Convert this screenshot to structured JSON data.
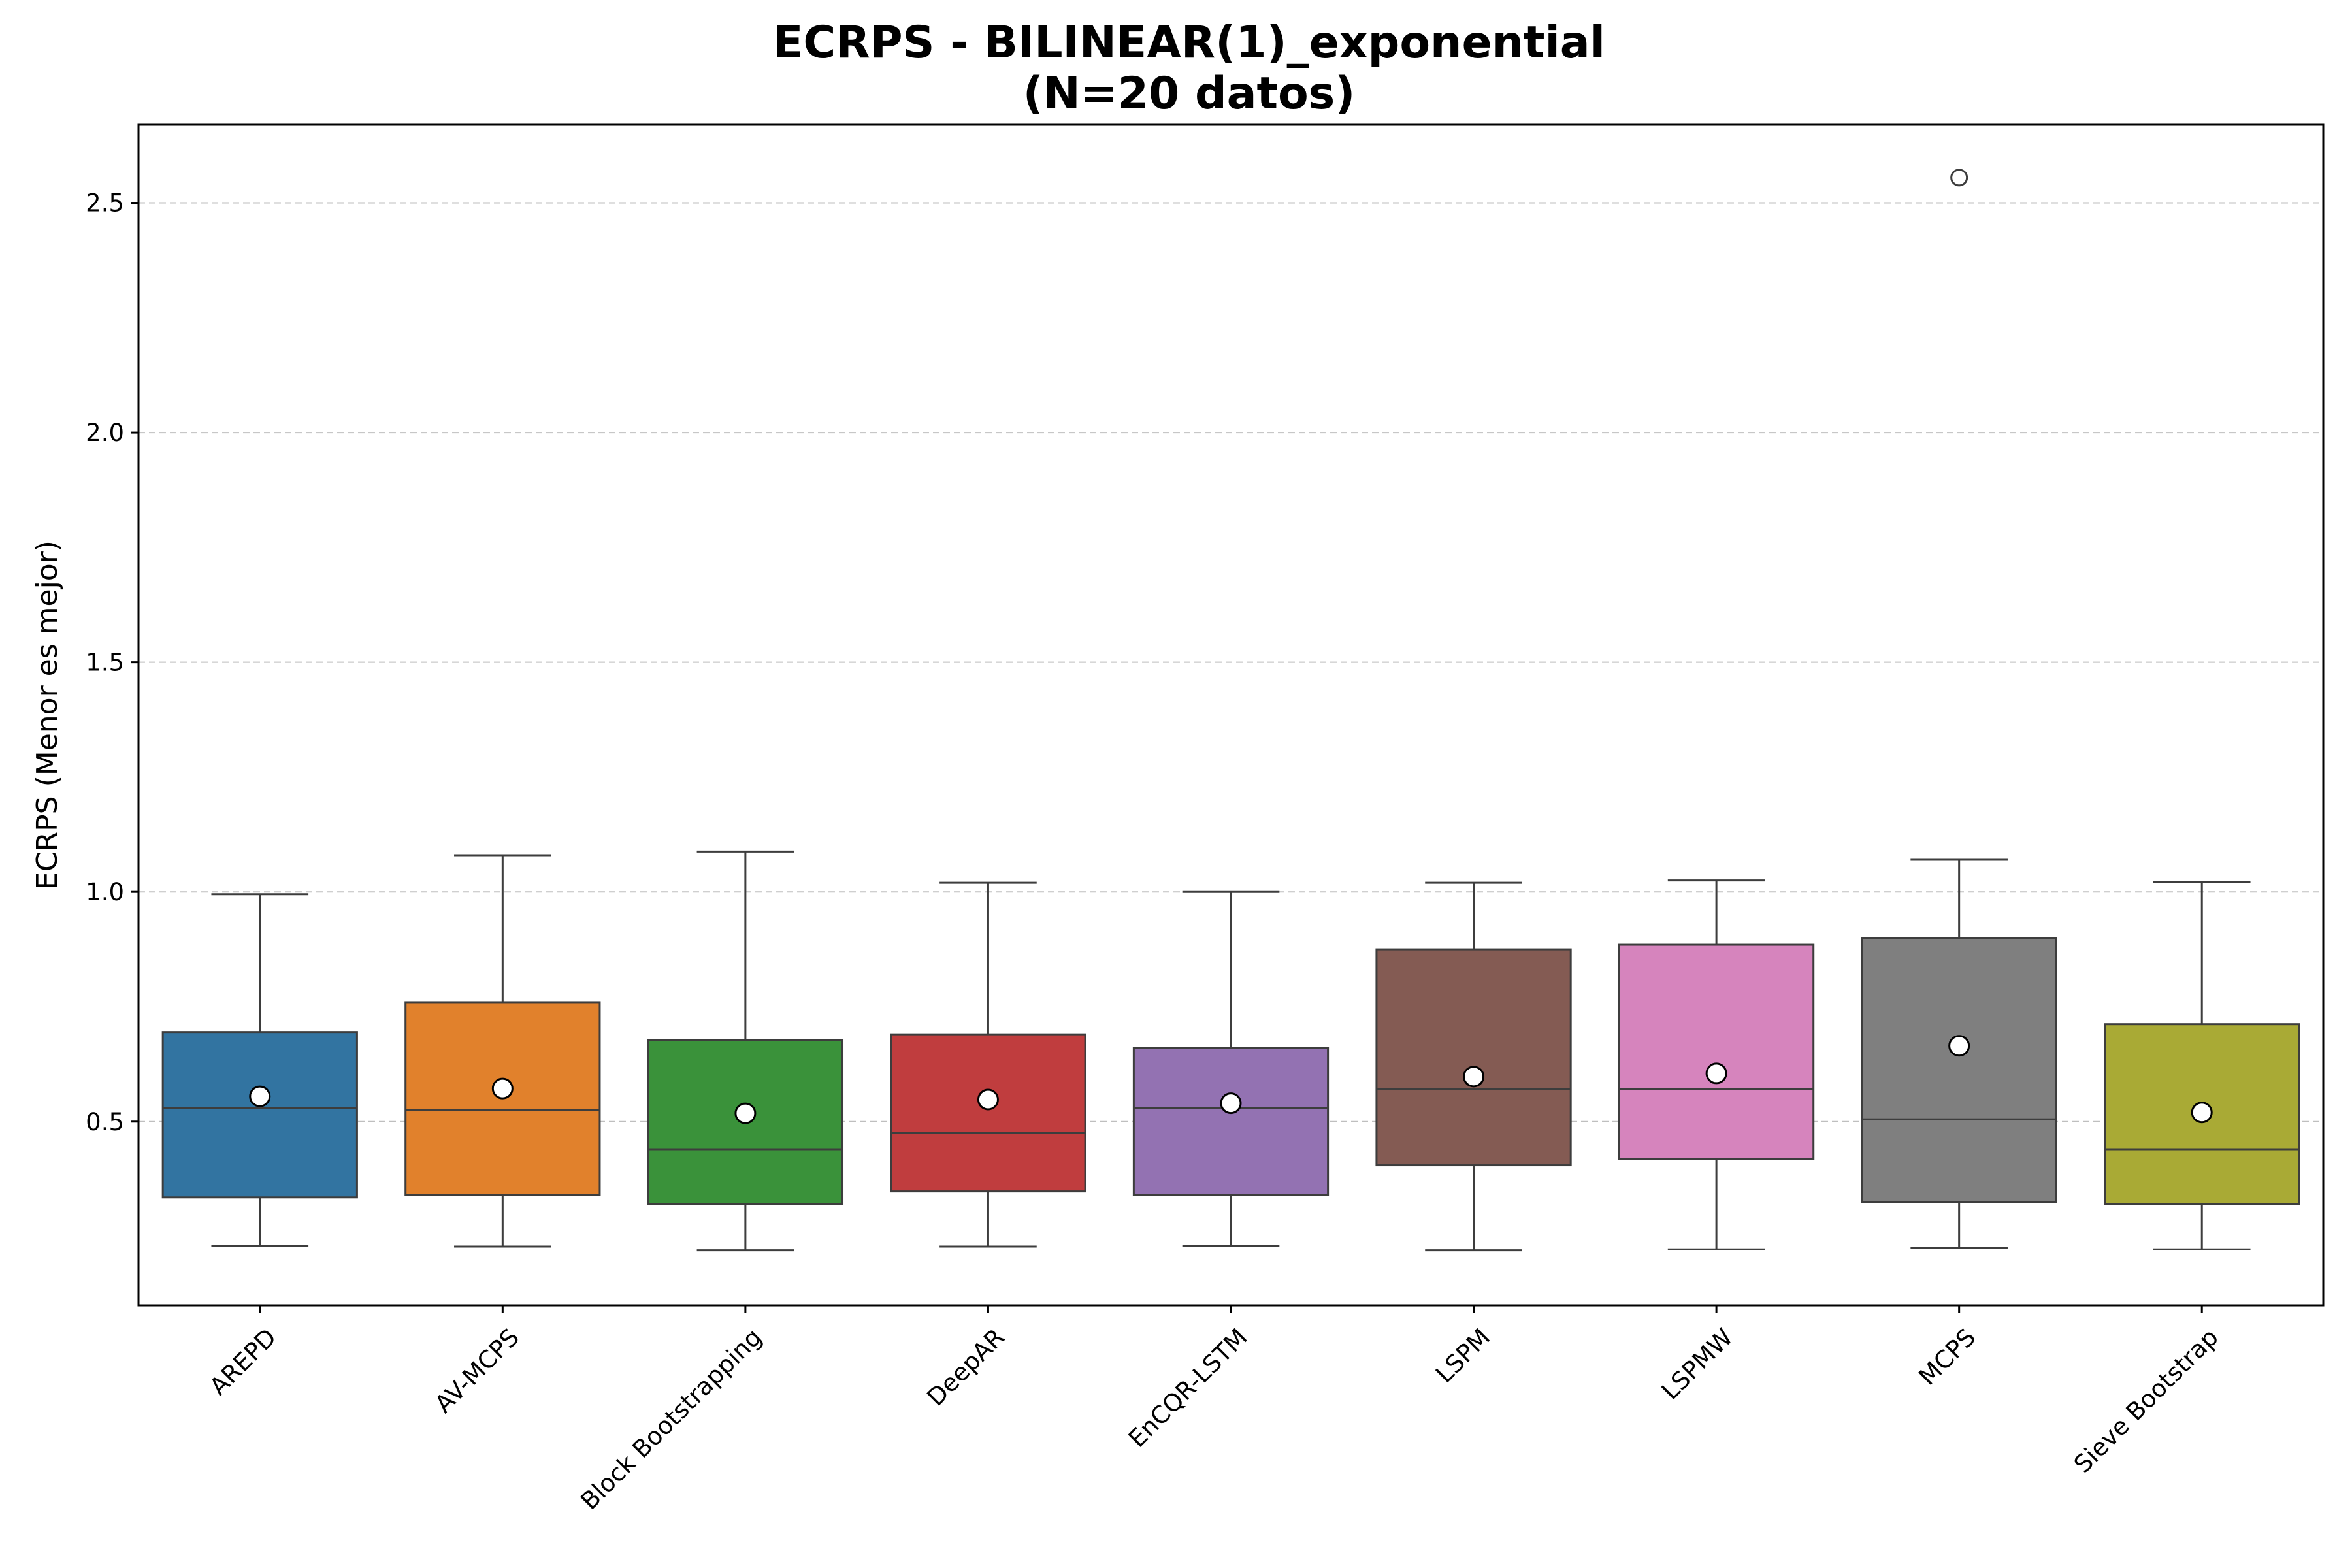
{
  "chart_data": {
    "type": "box",
    "title_lines": [
      "ECRPS - BILINEAR(1)_exponential",
      "(N=20 datos)"
    ],
    "xlabel": "",
    "ylabel": "ECRPS (Menor es mejor)",
    "ylim": [
      0.1,
      2.67
    ],
    "yticks": [
      0.5,
      1.0,
      1.5,
      2.0,
      2.5
    ],
    "ytick_labels": [
      "0.5",
      "1.0",
      "1.5",
      "2.0",
      "2.5"
    ],
    "grid": "y, dashed",
    "categories": [
      "AREPD",
      "AV-MCPS",
      "Block Bootstrapping",
      "DeepAR",
      "EnCQR-LSTM",
      "LSPM",
      "LSPMW",
      "MCPS",
      "Sieve Bootstrap"
    ],
    "series": [
      {
        "category": "AREPD",
        "whisker_low": 0.23,
        "q1": 0.335,
        "median": 0.53,
        "q3": 0.695,
        "whisker_high": 0.995,
        "mean": 0.555,
        "outliers": [],
        "color": "#3274a1"
      },
      {
        "category": "AV-MCPS",
        "whisker_low": 0.228,
        "q1": 0.34,
        "median": 0.525,
        "q3": 0.76,
        "whisker_high": 1.08,
        "mean": 0.572,
        "outliers": [],
        "color": "#e1812c"
      },
      {
        "category": "Block Bootstrapping",
        "whisker_low": 0.22,
        "q1": 0.32,
        "median": 0.44,
        "q3": 0.678,
        "whisker_high": 1.088,
        "mean": 0.518,
        "outliers": [],
        "color": "#3a923a"
      },
      {
        "category": "DeepAR",
        "whisker_low": 0.228,
        "q1": 0.348,
        "median": 0.475,
        "q3": 0.69,
        "whisker_high": 1.02,
        "mean": 0.548,
        "outliers": [],
        "color": "#c03d3e"
      },
      {
        "category": "EnCQR-LSTM",
        "whisker_low": 0.23,
        "q1": 0.34,
        "median": 0.53,
        "q3": 0.66,
        "whisker_high": 1.0,
        "mean": 0.54,
        "outliers": [],
        "color": "#9372b2"
      },
      {
        "category": "LSPM",
        "whisker_low": 0.22,
        "q1": 0.405,
        "median": 0.57,
        "q3": 0.875,
        "whisker_high": 1.02,
        "mean": 0.598,
        "outliers": [],
        "color": "#845b53"
      },
      {
        "category": "LSPMW",
        "whisker_low": 0.222,
        "q1": 0.418,
        "median": 0.57,
        "q3": 0.885,
        "whisker_high": 1.025,
        "mean": 0.605,
        "outliers": [],
        "color": "#d684bd"
      },
      {
        "category": "MCPS",
        "whisker_low": 0.225,
        "q1": 0.325,
        "median": 0.505,
        "q3": 0.9,
        "whisker_high": 1.07,
        "mean": 0.665,
        "outliers": [
          2.555
        ],
        "color": "#7f7f7f"
      },
      {
        "category": "Sieve Bootstrap",
        "whisker_low": 0.222,
        "q1": 0.32,
        "median": 0.44,
        "q3": 0.712,
        "whisker_high": 1.022,
        "mean": 0.52,
        "outliers": [],
        "color": "#a9aa35"
      }
    ]
  }
}
